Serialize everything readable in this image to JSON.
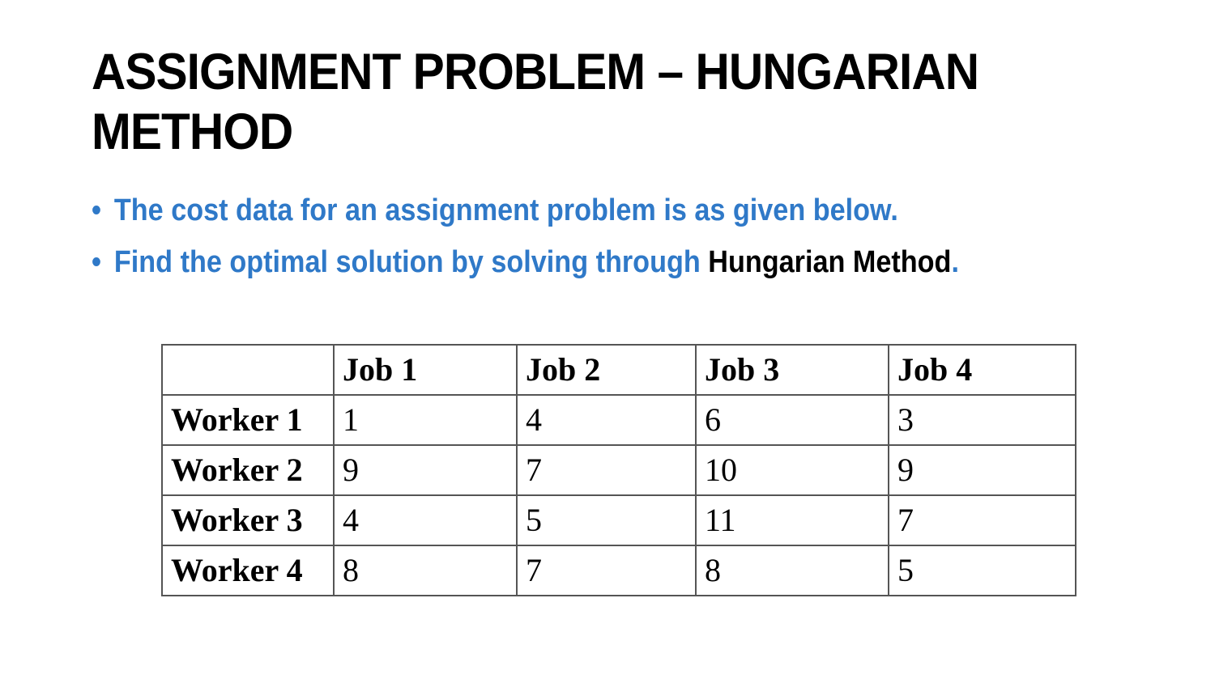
{
  "title": {
    "line1": "ASSIGNMENT PROBLEM – HUNGARIAN",
    "line2": "METHOD"
  },
  "bullets": {
    "b1": "The cost data for an assignment problem is as given below.",
    "b2_prefix": "Find the optimal solution by solving through ",
    "b2_emphasis": "Hungarian Method",
    "b2_suffix": ".",
    "marker": "•"
  },
  "colors": {
    "bullet_text": "#2f79c8",
    "title_text": "#000000"
  },
  "table": {
    "corner": "",
    "headers": [
      "Job 1",
      "Job 2",
      "Job 3",
      "Job 4"
    ],
    "rows": [
      {
        "label": "Worker 1",
        "values": [
          "1",
          "4",
          "6",
          "3"
        ]
      },
      {
        "label": "Worker 2",
        "values": [
          "9",
          "7",
          "10",
          "9"
        ]
      },
      {
        "label": "Worker 3",
        "values": [
          "4",
          "5",
          "11",
          "7"
        ]
      },
      {
        "label": "Worker 4",
        "values": [
          "8",
          "7",
          "8",
          "5"
        ]
      }
    ]
  }
}
